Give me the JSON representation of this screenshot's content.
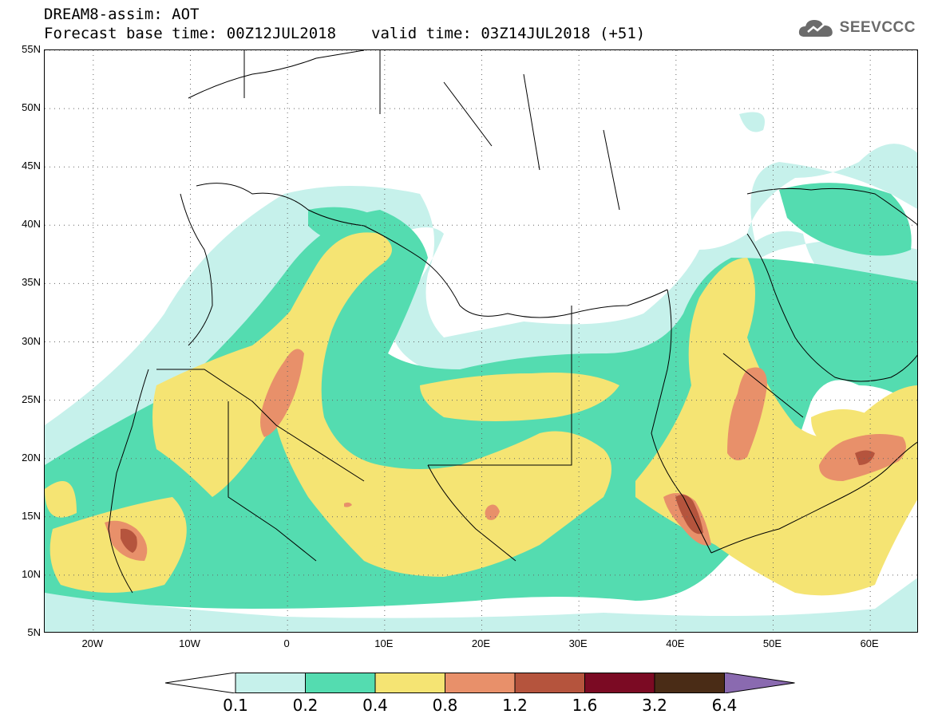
{
  "title": {
    "line1": "DREAM8-assim: AOT",
    "base_time": "Forecast base time: 00Z12JUL2018",
    "valid_time": "valid time: 03Z14JUL2018 (+51)"
  },
  "logo": {
    "text": "SEEVCCC",
    "icon": "cloud-icon"
  },
  "axes": {
    "lat_labels": [
      "55N",
      "50N",
      "45N",
      "40N",
      "35N",
      "30N",
      "25N",
      "20N",
      "15N",
      "10N",
      "5N"
    ],
    "lon_labels": [
      "20W",
      "10W",
      "0",
      "10E",
      "20E",
      "30E",
      "40E",
      "50E",
      "60E"
    ],
    "lon_range": [
      -25,
      65
    ],
    "lat_range": [
      5,
      55
    ],
    "grid": "dotted"
  },
  "colorbar": {
    "levels": [
      "0.1",
      "0.2",
      "0.4",
      "0.8",
      "1.2",
      "1.6",
      "3.2",
      "6.4"
    ],
    "colors": [
      "#ffffff",
      "#c6f1eb",
      "#54dcb0",
      "#f5e473",
      "#e8906a",
      "#b5543d",
      "#7b0a23",
      "#4a2c16",
      "#8a6ab0"
    ]
  }
}
